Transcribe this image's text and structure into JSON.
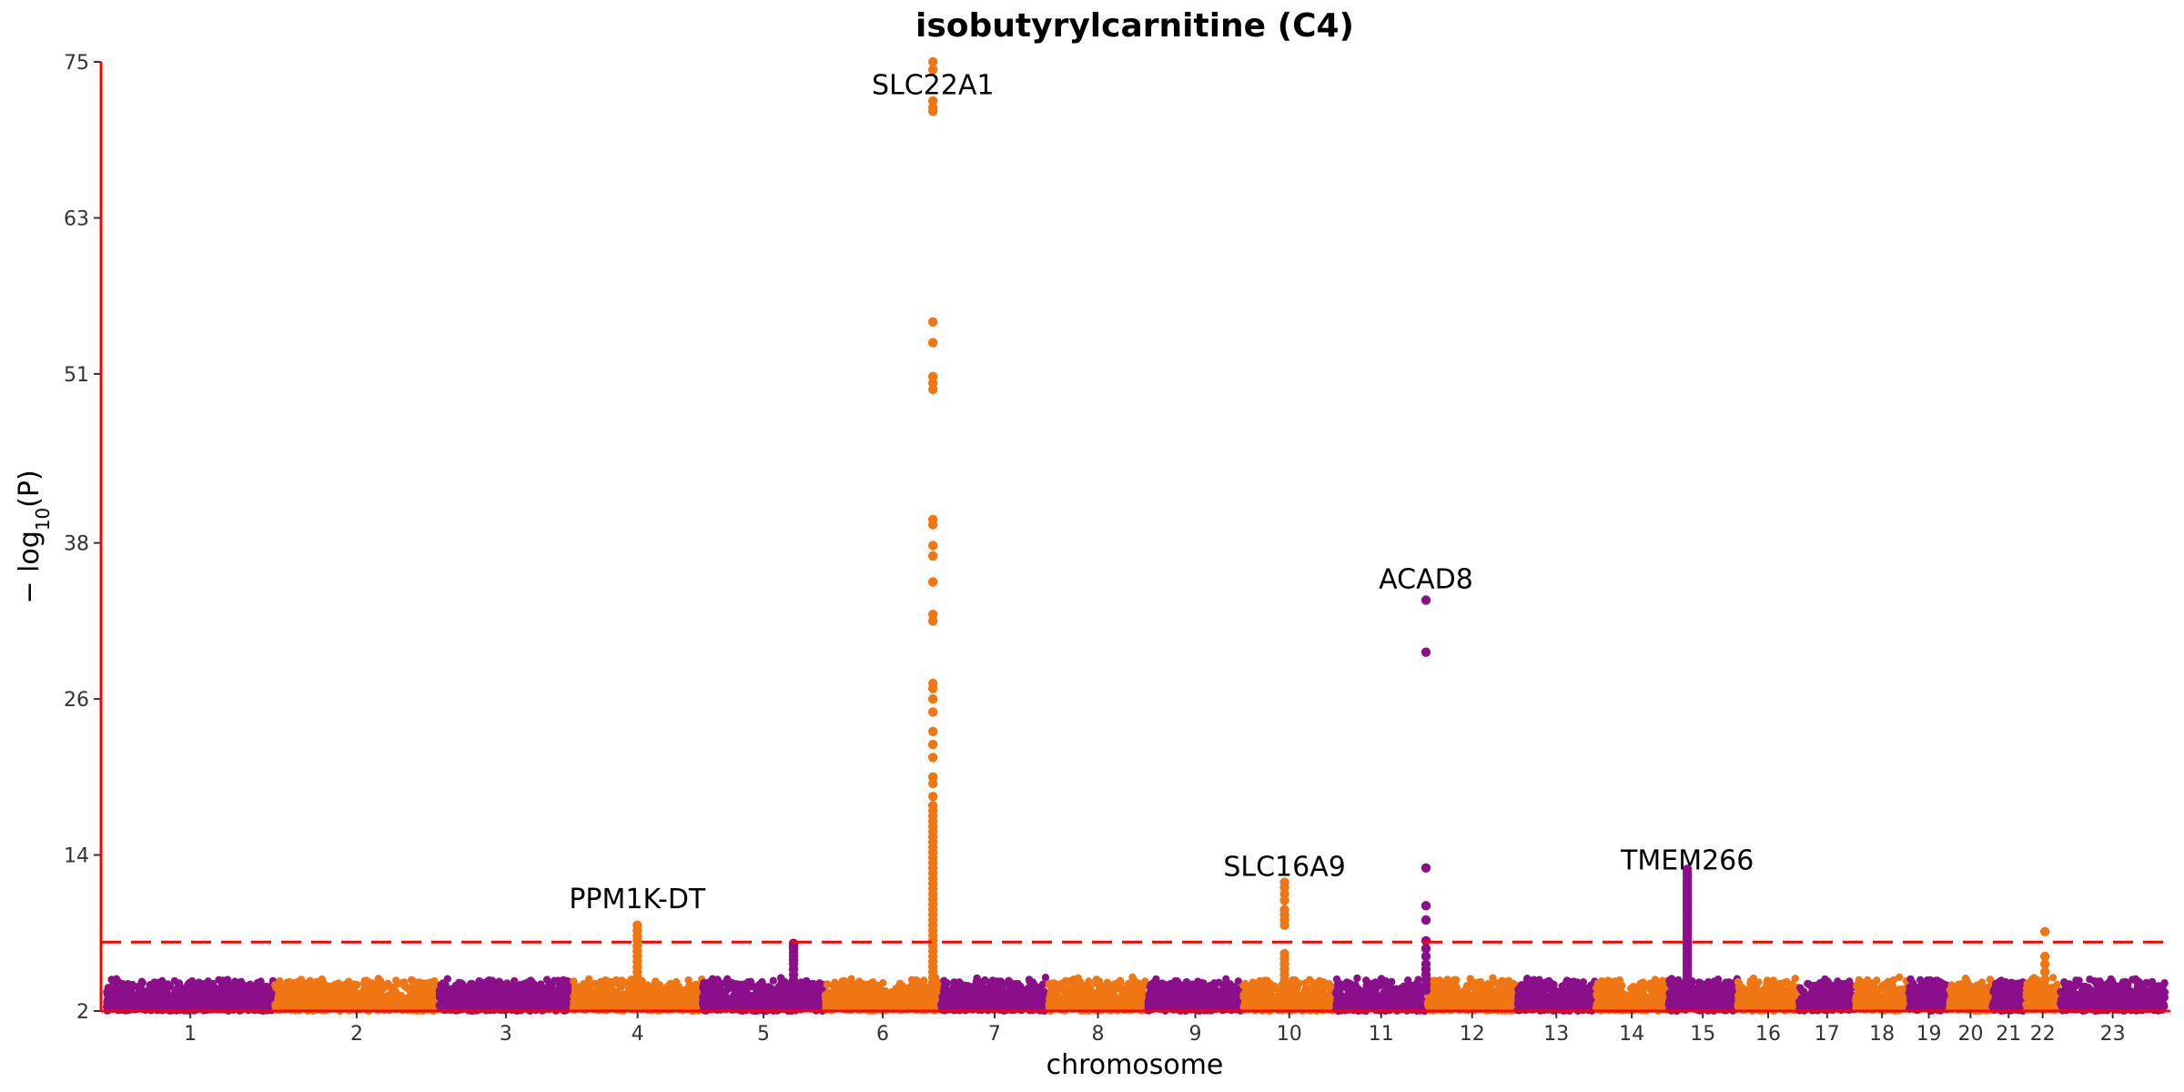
{
  "chart_data": {
    "type": "scatter",
    "subtype": "manhattan",
    "title": "isobutyrylcarnitine (C4)",
    "xlabel": "chromosome",
    "ylabel": "− log10(P)",
    "ylabel_parts": {
      "prefix": "− log",
      "sub": "10",
      "rest": "(P)"
    },
    "ylim": [
      2,
      75
    ],
    "yticks": [
      2,
      14,
      26,
      38,
      51,
      63,
      75
    ],
    "significance_threshold": 7.3,
    "colors": {
      "odd": "#8b0f8b",
      "even": "#ef7612",
      "axis": "#ff0000",
      "threshold": "#ff0000"
    },
    "chromosomes": [
      {
        "label": "1",
        "length": 249
      },
      {
        "label": "2",
        "length": 243
      },
      {
        "label": "3",
        "length": 198
      },
      {
        "label": "4",
        "length": 191
      },
      {
        "label": "5",
        "length": 181
      },
      {
        "label": "6",
        "length": 171
      },
      {
        "label": "7",
        "length": 159
      },
      {
        "label": "8",
        "length": 146
      },
      {
        "label": "9",
        "length": 141
      },
      {
        "label": "10",
        "length": 136
      },
      {
        "label": "11",
        "length": 135
      },
      {
        "label": "12",
        "length": 133
      },
      {
        "label": "13",
        "length": 115
      },
      {
        "label": "14",
        "length": 107
      },
      {
        "label": "15",
        "length": 102
      },
      {
        "label": "16",
        "length": 90
      },
      {
        "label": "17",
        "length": 83
      },
      {
        "label": "18",
        "length": 78
      },
      {
        "label": "19",
        "length": 59
      },
      {
        "label": "20",
        "length": 63
      },
      {
        "label": "21",
        "length": 48
      },
      {
        "label": "22",
        "length": 51
      },
      {
        "label": "23",
        "length": 155
      }
    ],
    "peaks": [
      {
        "chrom": "4",
        "pos": 95,
        "values": [
          8.6,
          8.2,
          7.8,
          7.4,
          7.0,
          6.6,
          6.2,
          5.8,
          5.4,
          5.0,
          4.6,
          4.2,
          3.8
        ]
      },
      {
        "chrom": "5",
        "pos": 135,
        "values": [
          7.2,
          7.0,
          6.8,
          6.5,
          6.2,
          5.9,
          5.6,
          5.2,
          4.8,
          4.4,
          4.0
        ]
      },
      {
        "chrom": "6",
        "pos": 160,
        "values": [
          75.0,
          74.4,
          72.0,
          71.5,
          71.2,
          55.0,
          53.4,
          50.8,
          50.3,
          49.8,
          39.8,
          39.4,
          37.8,
          37.0,
          35.0,
          32.5,
          32.0,
          27.2,
          26.8,
          26.0,
          25.0,
          23.5,
          22.5,
          21.5,
          20.0,
          19.5,
          18.5,
          17.8,
          17.4,
          17.0,
          16.6,
          16.2,
          15.8,
          15.4,
          15.0,
          14.6,
          14.2,
          13.8,
          13.4,
          13.0,
          12.6,
          12.2,
          11.8,
          11.4,
          11.0,
          10.6,
          10.2,
          9.8,
          9.4,
          9.0,
          8.6,
          8.2,
          7.8,
          7.4,
          7.0,
          6.6,
          6.2,
          5.8,
          5.4,
          5.0,
          4.6,
          4.2,
          3.8
        ]
      },
      {
        "chrom": "10",
        "pos": 61,
        "values": [
          11.9,
          11.5,
          11.0,
          10.5,
          9.8,
          9.4,
          9.0,
          8.6,
          6.4,
          6.0,
          5.6,
          5.2,
          4.8,
          4.4,
          4.0
        ]
      },
      {
        "chrom": "11",
        "pos": 134,
        "values": [
          33.6,
          29.6,
          13.0,
          10.1,
          9.0,
          7.4,
          6.8,
          6.2,
          5.6,
          5.2,
          4.8,
          4.4,
          4.0,
          3.6
        ]
      },
      {
        "chrom": "15",
        "pos": 28,
        "values": [
          12.9,
          12.7,
          12.5,
          12.3,
          12.1,
          11.9,
          11.7,
          11.5,
          11.3,
          11.1,
          10.9,
          10.7,
          10.5,
          10.3,
          10.1,
          9.9,
          9.7,
          9.5,
          9.3,
          9.1,
          8.9,
          8.7,
          8.5,
          8.3,
          8.1,
          7.9,
          7.7,
          7.5,
          7.3,
          7.1,
          6.9,
          6.7,
          6.5,
          6.3,
          6.1,
          5.9,
          5.7,
          5.5,
          5.3,
          5.1,
          4.9,
          4.7,
          4.5,
          4.3,
          4.1
        ]
      },
      {
        "chrom": "22",
        "pos": 29,
        "values": [
          8.1,
          6.2,
          5.6,
          5.0,
          4.4,
          3.9
        ]
      }
    ],
    "annotations": [
      {
        "label": "SLC22A1",
        "chrom": "6",
        "pos": 160,
        "y": 72.5
      },
      {
        "label": "PPM1K-DT",
        "chrom": "4",
        "pos": 95,
        "y": 9.9
      },
      {
        "label": "SLC16A9",
        "chrom": "10",
        "pos": 61,
        "y": 12.4
      },
      {
        "label": "ACAD8",
        "chrom": "11",
        "pos": 134,
        "y": 34.5
      },
      {
        "label": "TMEM266",
        "chrom": "15",
        "pos": 28,
        "y": 12.9
      }
    ]
  }
}
